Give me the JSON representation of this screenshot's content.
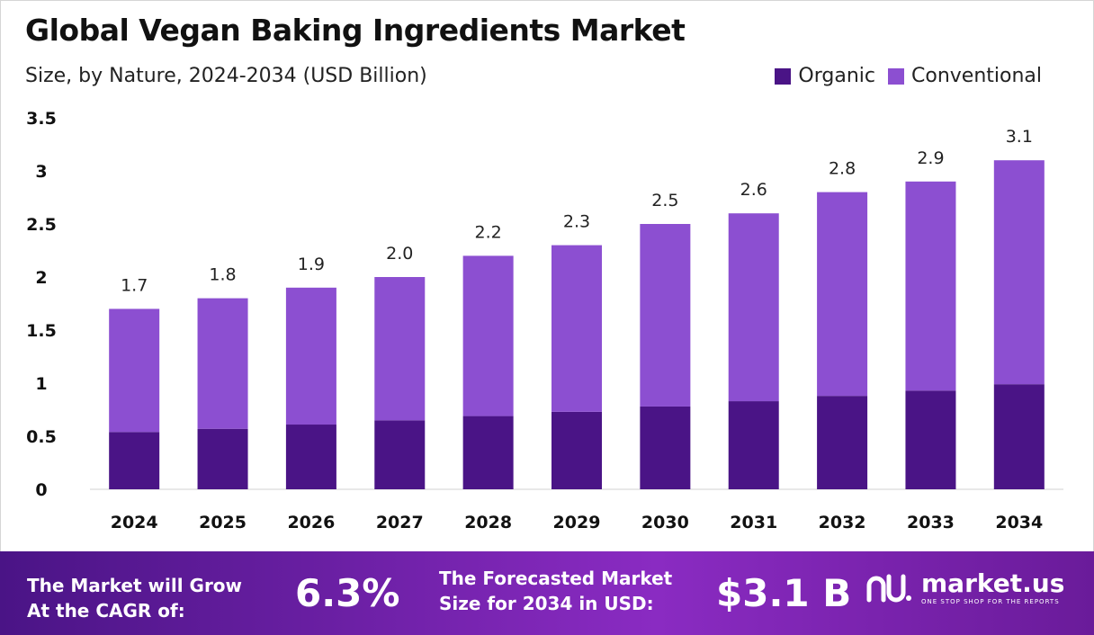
{
  "title": "Global Vegan Baking Ingredients Market",
  "subtitle": "Size, by Nature, 2024-2034 (USD Billion)",
  "legend": [
    "Organic",
    "Conventional"
  ],
  "colors": {
    "organic": "#4a1486",
    "conventional": "#8c4fd1"
  },
  "chart_data": {
    "type": "bar",
    "stacked": true,
    "title": "Global Vegan Baking Ingredients Market",
    "subtitle": "Size, by Nature, 2024-2034 (USD Billion)",
    "categories": [
      "2024",
      "2025",
      "2026",
      "2027",
      "2028",
      "2029",
      "2030",
      "2031",
      "2032",
      "2033",
      "2034"
    ],
    "series": [
      {
        "name": "Organic",
        "values": [
          0.54,
          0.57,
          0.61,
          0.65,
          0.69,
          0.73,
          0.78,
          0.83,
          0.88,
          0.93,
          0.99
        ]
      },
      {
        "name": "Conventional",
        "values": [
          1.16,
          1.23,
          1.29,
          1.35,
          1.51,
          1.57,
          1.72,
          1.77,
          1.92,
          1.97,
          2.11
        ]
      }
    ],
    "totals_labels": [
      "1.7",
      "1.8",
      "1.9",
      "2.0",
      "2.2",
      "2.3",
      "2.5",
      "2.6",
      "2.8",
      "2.9",
      "3.1"
    ],
    "yticks": [
      "0",
      "0.5",
      "1",
      "1.5",
      "2",
      "2.5",
      "3",
      "3.5"
    ],
    "ylim": [
      0,
      3.5
    ],
    "grid": false,
    "legend_position": "top-right"
  },
  "footer": {
    "cagr_label_line1": "The Market will Grow",
    "cagr_label_line2": "At the CAGR of:",
    "cagr_value": "6.3%",
    "forecast_label_line1": "The Forecasted Market",
    "forecast_label_line2": "Size for 2034 in USD:",
    "forecast_value": "$3.1 B",
    "brand_name": "market.us",
    "brand_tagline": "ONE STOP SHOP FOR THE REPORTS"
  }
}
